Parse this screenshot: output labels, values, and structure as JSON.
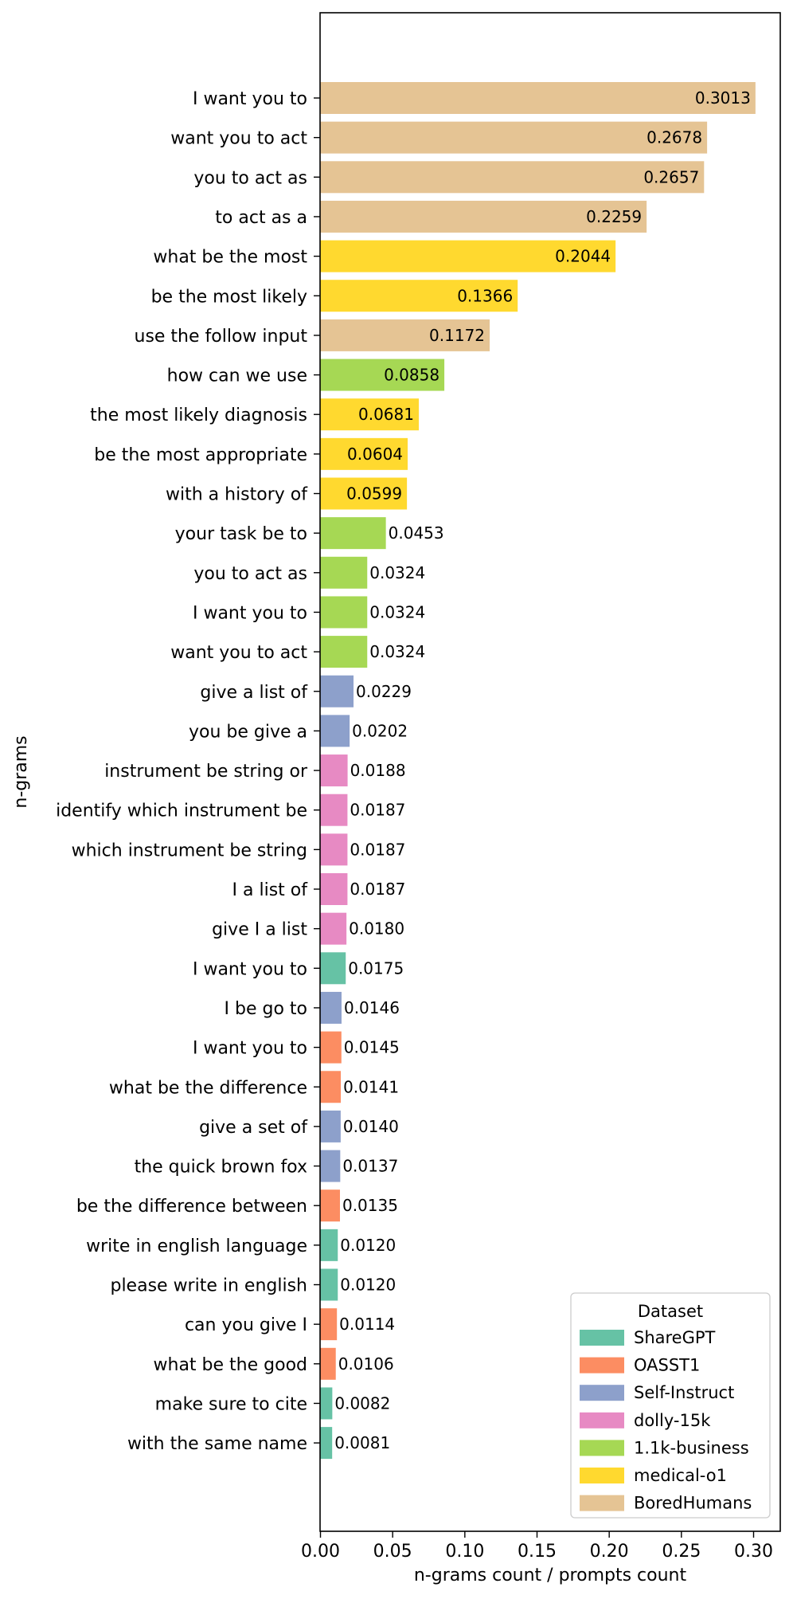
{
  "chart_data": {
    "type": "bar",
    "orientation": "horizontal",
    "title": "",
    "xlabel": "n-grams count / prompts count",
    "ylabel": "n-grams",
    "xlim": [
      0,
      0.315
    ],
    "xticks": [
      "0.00",
      "0.05",
      "0.10",
      "0.15",
      "0.20",
      "0.25",
      "0.30"
    ],
    "grid": false,
    "legend": {
      "title": "Dataset",
      "position": "bottom-right",
      "entries": [
        {
          "name": "ShareGPT",
          "color": "#66c2a5"
        },
        {
          "name": "OASST1",
          "color": "#fc8d62"
        },
        {
          "name": "Self-Instruct",
          "color": "#8da0cb"
        },
        {
          "name": "dolly-15k",
          "color": "#e78ac3"
        },
        {
          "name": "1.1k-business",
          "color": "#a6d854"
        },
        {
          "name": "medical-o1",
          "color": "#ffd92f"
        },
        {
          "name": "BoredHumans",
          "color": "#e5c494"
        }
      ]
    },
    "bars": [
      {
        "label": "I want you to",
        "value": 0.3013,
        "display": "0.3013",
        "dataset": "BoredHumans"
      },
      {
        "label": "want you to act",
        "value": 0.2678,
        "display": "0.2678",
        "dataset": "BoredHumans"
      },
      {
        "label": "you to act as",
        "value": 0.2657,
        "display": "0.2657",
        "dataset": "BoredHumans"
      },
      {
        "label": "to act as a",
        "value": 0.2259,
        "display": "0.2259",
        "dataset": "BoredHumans"
      },
      {
        "label": "what be the most",
        "value": 0.2044,
        "display": "0.2044",
        "dataset": "medical-o1"
      },
      {
        "label": "be the most likely",
        "value": 0.1366,
        "display": "0.1366",
        "dataset": "medical-o1"
      },
      {
        "label": "use the follow input",
        "value": 0.1172,
        "display": "0.1172",
        "dataset": "BoredHumans"
      },
      {
        "label": "how can we use",
        "value": 0.0858,
        "display": "0.0858",
        "dataset": "1.1k-business"
      },
      {
        "label": "the most likely diagnosis",
        "value": 0.0681,
        "display": "0.0681",
        "dataset": "medical-o1"
      },
      {
        "label": "be the most appropriate",
        "value": 0.0604,
        "display": "0.0604",
        "dataset": "medical-o1"
      },
      {
        "label": "with a history of",
        "value": 0.0599,
        "display": "0.0599",
        "dataset": "medical-o1"
      },
      {
        "label": "your task be to",
        "value": 0.0453,
        "display": "0.0453",
        "dataset": "1.1k-business"
      },
      {
        "label": "you to act as",
        "value": 0.0324,
        "display": "0.0324",
        "dataset": "1.1k-business"
      },
      {
        "label": "I want you to",
        "value": 0.0324,
        "display": "0.0324",
        "dataset": "1.1k-business"
      },
      {
        "label": "want you to act",
        "value": 0.0324,
        "display": "0.0324",
        "dataset": "1.1k-business"
      },
      {
        "label": "give a list of",
        "value": 0.0229,
        "display": "0.0229",
        "dataset": "Self-Instruct"
      },
      {
        "label": "you be give a",
        "value": 0.0202,
        "display": "0.0202",
        "dataset": "Self-Instruct"
      },
      {
        "label": "instrument be string or",
        "value": 0.0188,
        "display": "0.0188",
        "dataset": "dolly-15k"
      },
      {
        "label": "identify which instrument be",
        "value": 0.0187,
        "display": "0.0187",
        "dataset": "dolly-15k"
      },
      {
        "label": "which instrument be string",
        "value": 0.0187,
        "display": "0.0187",
        "dataset": "dolly-15k"
      },
      {
        "label": "I a list of",
        "value": 0.0187,
        "display": "0.0187",
        "dataset": "dolly-15k"
      },
      {
        "label": "give I a list",
        "value": 0.018,
        "display": "0.0180",
        "dataset": "dolly-15k"
      },
      {
        "label": "I want you to",
        "value": 0.0175,
        "display": "0.0175",
        "dataset": "ShareGPT"
      },
      {
        "label": "I be go to",
        "value": 0.0146,
        "display": "0.0146",
        "dataset": "Self-Instruct"
      },
      {
        "label": "I want you to",
        "value": 0.0145,
        "display": "0.0145",
        "dataset": "OASST1"
      },
      {
        "label": "what be the difference",
        "value": 0.0141,
        "display": "0.0141",
        "dataset": "OASST1"
      },
      {
        "label": "give a set of",
        "value": 0.014,
        "display": "0.0140",
        "dataset": "Self-Instruct"
      },
      {
        "label": "the quick brown fox",
        "value": 0.0137,
        "display": "0.0137",
        "dataset": "Self-Instruct"
      },
      {
        "label": "be the difference between",
        "value": 0.0135,
        "display": "0.0135",
        "dataset": "OASST1"
      },
      {
        "label": "write in english language",
        "value": 0.012,
        "display": "0.0120",
        "dataset": "ShareGPT"
      },
      {
        "label": "please write in english",
        "value": 0.012,
        "display": "0.0120",
        "dataset": "ShareGPT"
      },
      {
        "label": "can you give I",
        "value": 0.0114,
        "display": "0.0114",
        "dataset": "OASST1"
      },
      {
        "label": "what be the good",
        "value": 0.0106,
        "display": "0.0106",
        "dataset": "OASST1"
      },
      {
        "label": "make sure to cite",
        "value": 0.0082,
        "display": "0.0082",
        "dataset": "ShareGPT"
      },
      {
        "label": "with the same name",
        "value": 0.0081,
        "display": "0.0081",
        "dataset": "ShareGPT"
      }
    ]
  }
}
